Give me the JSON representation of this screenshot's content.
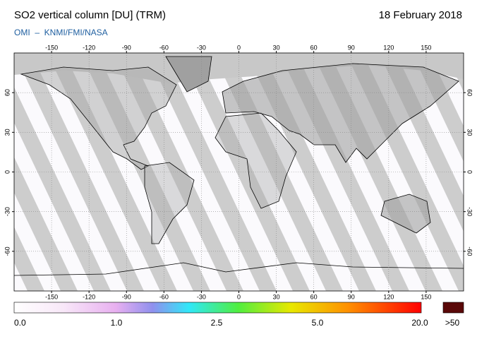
{
  "header": {
    "title": "SO2 vertical column [DU] (TRM)",
    "date": "18 February 2018",
    "credit": "OMI  –  KNMI/FMI/NASA"
  },
  "map": {
    "lon_ticks": [
      -150,
      -120,
      -90,
      -60,
      -30,
      0,
      30,
      60,
      90,
      120,
      150
    ],
    "lat_ticks": [
      60,
      30,
      0,
      -30,
      -60
    ]
  },
  "colorbar": {
    "labels": [
      "0.0",
      "1.0",
      "2.5",
      "5.0",
      "20.0",
      ">50"
    ]
  }
}
